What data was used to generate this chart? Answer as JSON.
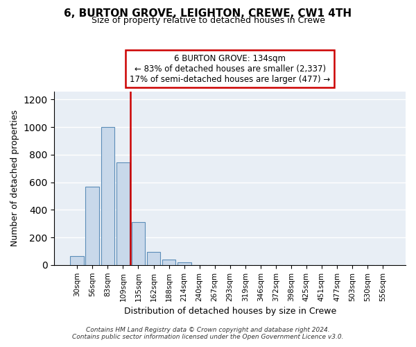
{
  "title": "6, BURTON GROVE, LEIGHTON, CREWE, CW1 4TH",
  "subtitle": "Size of property relative to detached houses in Crewe",
  "xlabel": "Distribution of detached houses by size in Crewe",
  "ylabel": "Number of detached properties",
  "bin_labels": [
    "30sqm",
    "56sqm",
    "83sqm",
    "109sqm",
    "135sqm",
    "162sqm",
    "188sqm",
    "214sqm",
    "240sqm",
    "267sqm",
    "293sqm",
    "319sqm",
    "346sqm",
    "372sqm",
    "398sqm",
    "425sqm",
    "451sqm",
    "477sqm",
    "503sqm",
    "530sqm",
    "556sqm"
  ],
  "bar_values": [
    65,
    570,
    1000,
    745,
    310,
    95,
    40,
    20,
    0,
    0,
    0,
    0,
    0,
    0,
    0,
    0,
    0,
    0,
    0,
    0,
    0
  ],
  "bar_color": "#c8d8ea",
  "bar_edgecolor": "#5b8db8",
  "vline_color": "#cc0000",
  "ylim": [
    0,
    1260
  ],
  "yticks": [
    0,
    200,
    400,
    600,
    800,
    1000,
    1200
  ],
  "annotation_title": "6 BURTON GROVE: 134sqm",
  "annotation_line1": "← 83% of detached houses are smaller (2,337)",
  "annotation_line2": "17% of semi-detached houses are larger (477) →",
  "annotation_box_facecolor": "#ffffff",
  "annotation_box_edgecolor": "#cc0000",
  "footer_line1": "Contains HM Land Registry data © Crown copyright and database right 2024.",
  "footer_line2": "Contains public sector information licensed under the Open Government Licence v3.0.",
  "background_color": "#ffffff",
  "plot_background": "#e8eef5",
  "grid_color": "#ffffff"
}
